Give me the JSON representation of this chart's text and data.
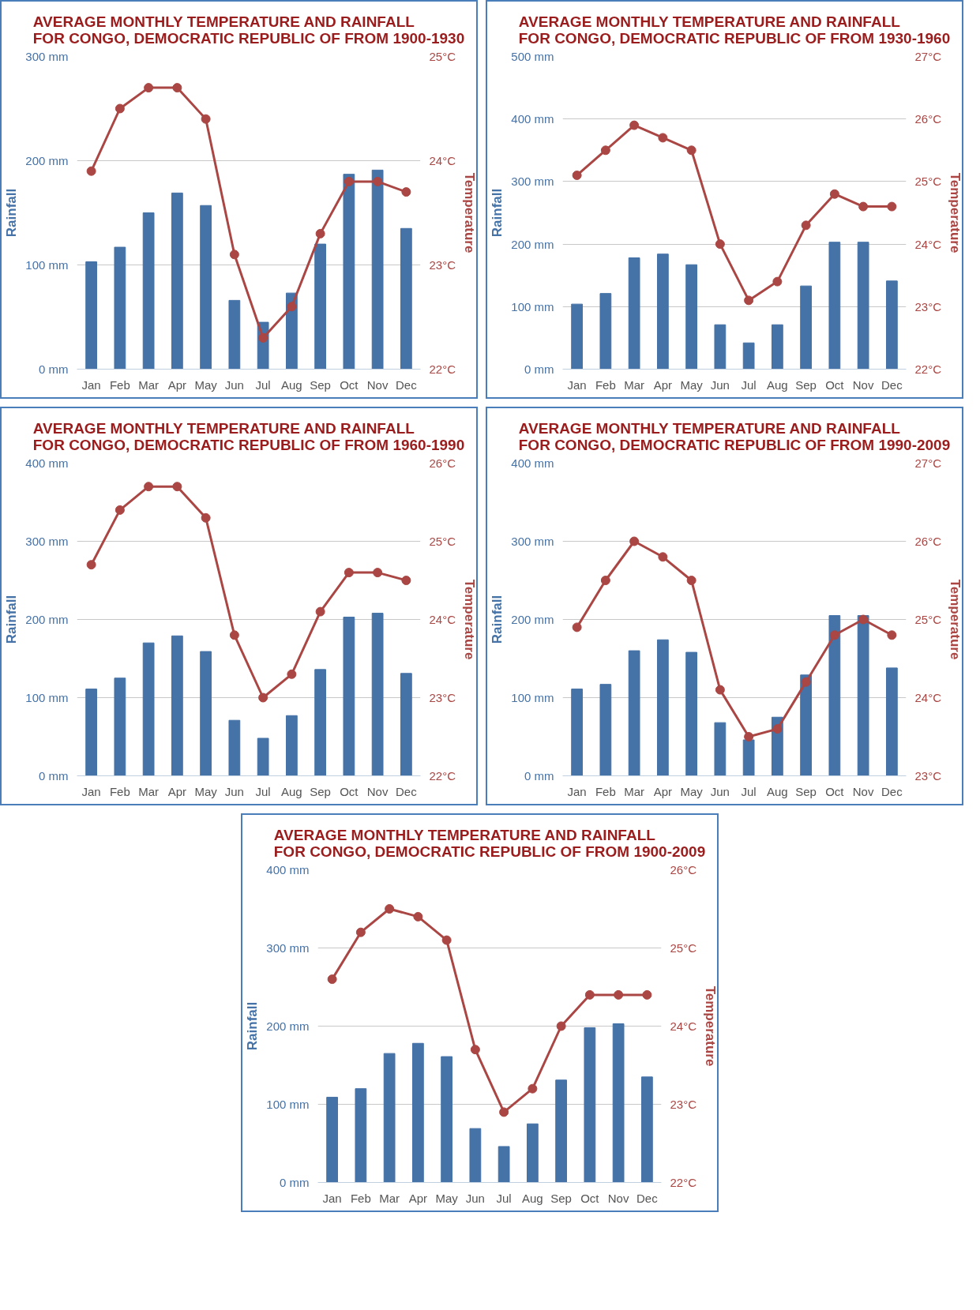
{
  "chart_data": [
    {
      "type": "bar",
      "title": "AVERAGE MONTHLY TEMPERATURE AND RAINFALL\nFOR CONGO, DEMOCRATIC REPUBLIC OF FROM 1900-1930",
      "categories": [
        "Jan",
        "Feb",
        "Mar",
        "Apr",
        "May",
        "Jun",
        "Jul",
        "Aug",
        "Sep",
        "Oct",
        "Nov",
        "Dec"
      ],
      "ylabel": "Rainfall",
      "y2label": "Temperature",
      "ylim": [
        0,
        300
      ],
      "yticks": [
        {
          "value": 0,
          "label": "0 mm"
        },
        {
          "value": 100,
          "label": "100 mm"
        },
        {
          "value": 200,
          "label": "200 mm"
        },
        {
          "value": 300,
          "label": "300 mm"
        }
      ],
      "y2lim": [
        22,
        25
      ],
      "y2ticks": [
        {
          "value": 22,
          "label": "22°C"
        },
        {
          "value": 23,
          "label": "23°C"
        },
        {
          "value": 24,
          "label": "24°C"
        },
        {
          "value": 25,
          "label": "25°C"
        }
      ],
      "grid": "y",
      "marker": "circle",
      "series": [
        {
          "color": "#4572a7",
          "values": [
            103,
            117,
            150,
            169,
            157,
            66,
            45,
            73,
            120,
            187,
            191,
            135
          ]
        },
        {
          "type": "line",
          "axis": "y2",
          "color": "#aa4643",
          "values": [
            23.9,
            24.5,
            24.7,
            24.7,
            24.4,
            23.1,
            22.3,
            22.6,
            23.3,
            23.8,
            23.8,
            23.7
          ]
        }
      ]
    },
    {
      "type": "bar",
      "title": "AVERAGE MONTHLY TEMPERATURE AND RAINFALL\nFOR CONGO, DEMOCRATIC REPUBLIC OF FROM 1930-1960",
      "categories": [
        "Jan",
        "Feb",
        "Mar",
        "Apr",
        "May",
        "Jun",
        "Jul",
        "Aug",
        "Sep",
        "Oct",
        "Nov",
        "Dec"
      ],
      "ylabel": "Rainfall",
      "y2label": "Temperature",
      "ylim": [
        0,
        500
      ],
      "yticks": [
        {
          "value": 0,
          "label": "0 mm"
        },
        {
          "value": 100,
          "label": "100 mm"
        },
        {
          "value": 200,
          "label": "200 mm"
        },
        {
          "value": 300,
          "label": "300 mm"
        },
        {
          "value": 400,
          "label": "400 mm"
        },
        {
          "value": 500,
          "label": "500 mm"
        }
      ],
      "y2lim": [
        22,
        27
      ],
      "y2ticks": [
        {
          "value": 22,
          "label": "22°C"
        },
        {
          "value": 23,
          "label": "23°C"
        },
        {
          "value": 24,
          "label": "24°C"
        },
        {
          "value": 25,
          "label": "25°C"
        },
        {
          "value": 26,
          "label": "26°C"
        },
        {
          "value": 27,
          "label": "27°C"
        }
      ],
      "grid": "y",
      "marker": "circle",
      "series": [
        {
          "color": "#4572a7",
          "values": [
            104,
            121,
            178,
            184,
            167,
            71,
            42,
            71,
            133,
            203,
            203,
            141
          ]
        },
        {
          "type": "line",
          "axis": "y2",
          "color": "#aa4643",
          "values": [
            25.1,
            25.5,
            25.9,
            25.7,
            25.5,
            24.0,
            23.1,
            23.4,
            24.3,
            24.8,
            24.6,
            24.6
          ]
        }
      ]
    },
    {
      "type": "bar",
      "title": "AVERAGE MONTHLY TEMPERATURE AND RAINFALL\nFOR CONGO, DEMOCRATIC REPUBLIC OF FROM 1960-1990",
      "categories": [
        "Jan",
        "Feb",
        "Mar",
        "Apr",
        "May",
        "Jun",
        "Jul",
        "Aug",
        "Sep",
        "Oct",
        "Nov",
        "Dec"
      ],
      "ylabel": "Rainfall",
      "y2label": "Temperature",
      "ylim": [
        0,
        400
      ],
      "yticks": [
        {
          "value": 0,
          "label": "0 mm"
        },
        {
          "value": 100,
          "label": "100 mm"
        },
        {
          "value": 200,
          "label": "200 mm"
        },
        {
          "value": 300,
          "label": "300 mm"
        },
        {
          "value": 400,
          "label": "400 mm"
        }
      ],
      "y2lim": [
        22,
        26
      ],
      "y2ticks": [
        {
          "value": 22,
          "label": "22°C"
        },
        {
          "value": 23,
          "label": "23°C"
        },
        {
          "value": 24,
          "label": "24°C"
        },
        {
          "value": 25,
          "label": "25°C"
        },
        {
          "value": 26,
          "label": "26°C"
        }
      ],
      "grid": "y",
      "marker": "circle",
      "series": [
        {
          "color": "#4572a7",
          "values": [
            111,
            125,
            170,
            179,
            159,
            71,
            48,
            77,
            136,
            203,
            208,
            131
          ]
        },
        {
          "type": "line",
          "axis": "y2",
          "color": "#aa4643",
          "values": [
            24.7,
            25.4,
            25.7,
            25.7,
            25.3,
            23.8,
            23.0,
            23.3,
            24.1,
            24.6,
            24.6,
            24.5
          ]
        }
      ]
    },
    {
      "type": "bar",
      "title": "AVERAGE MONTHLY TEMPERATURE AND RAINFALL\nFOR CONGO, DEMOCRATIC REPUBLIC OF FROM 1990-2009",
      "categories": [
        "Jan",
        "Feb",
        "Mar",
        "Apr",
        "May",
        "Jun",
        "Jul",
        "Aug",
        "Sep",
        "Oct",
        "Nov",
        "Dec"
      ],
      "ylabel": "Rainfall",
      "y2label": "Temperature",
      "ylim": [
        0,
        400
      ],
      "yticks": [
        {
          "value": 0,
          "label": "0 mm"
        },
        {
          "value": 100,
          "label": "100 mm"
        },
        {
          "value": 200,
          "label": "200 mm"
        },
        {
          "value": 300,
          "label": "300 mm"
        },
        {
          "value": 400,
          "label": "400 mm"
        }
      ],
      "y2lim": [
        23,
        27
      ],
      "y2ticks": [
        {
          "value": 23,
          "label": "23°C"
        },
        {
          "value": 24,
          "label": "24°C"
        },
        {
          "value": 25,
          "label": "25°C"
        },
        {
          "value": 26,
          "label": "26°C"
        },
        {
          "value": 27,
          "label": "27°C"
        }
      ],
      "grid": "y",
      "marker": "circle",
      "series": [
        {
          "color": "#4572a7",
          "values": [
            111,
            117,
            160,
            174,
            158,
            68,
            46,
            75,
            129,
            205,
            205,
            138
          ]
        },
        {
          "type": "line",
          "axis": "y2",
          "color": "#aa4643",
          "values": [
            24.9,
            25.5,
            26.0,
            25.8,
            25.5,
            24.1,
            23.5,
            23.6,
            24.2,
            24.8,
            25.0,
            24.8
          ]
        }
      ]
    },
    {
      "type": "bar",
      "title": "AVERAGE MONTHLY TEMPERATURE AND RAINFALL\nFOR CONGO, DEMOCRATIC REPUBLIC OF FROM 1900-2009",
      "categories": [
        "Jan",
        "Feb",
        "Mar",
        "Apr",
        "May",
        "Jun",
        "Jul",
        "Aug",
        "Sep",
        "Oct",
        "Nov",
        "Dec"
      ],
      "ylabel": "Rainfall",
      "y2label": "Temperature",
      "ylim": [
        0,
        400
      ],
      "yticks": [
        {
          "value": 0,
          "label": "0 mm"
        },
        {
          "value": 100,
          "label": "100 mm"
        },
        {
          "value": 200,
          "label": "200 mm"
        },
        {
          "value": 300,
          "label": "300 mm"
        },
        {
          "value": 400,
          "label": "400 mm"
        }
      ],
      "y2lim": [
        22,
        26
      ],
      "y2ticks": [
        {
          "value": 22,
          "label": "22°C"
        },
        {
          "value": 23,
          "label": "23°C"
        },
        {
          "value": 24,
          "label": "24°C"
        },
        {
          "value": 25,
          "label": "25°C"
        },
        {
          "value": 26,
          "label": "26°C"
        }
      ],
      "grid": "y",
      "marker": "circle",
      "series": [
        {
          "color": "#4572a7",
          "values": [
            109,
            120,
            165,
            178,
            161,
            69,
            46,
            75,
            131,
            198,
            203,
            135
          ]
        },
        {
          "type": "line",
          "axis": "y2",
          "color": "#aa4643",
          "values": [
            24.6,
            25.2,
            25.5,
            25.4,
            25.1,
            23.7,
            22.9,
            23.2,
            24.0,
            24.4,
            24.4,
            24.4
          ]
        }
      ]
    }
  ]
}
